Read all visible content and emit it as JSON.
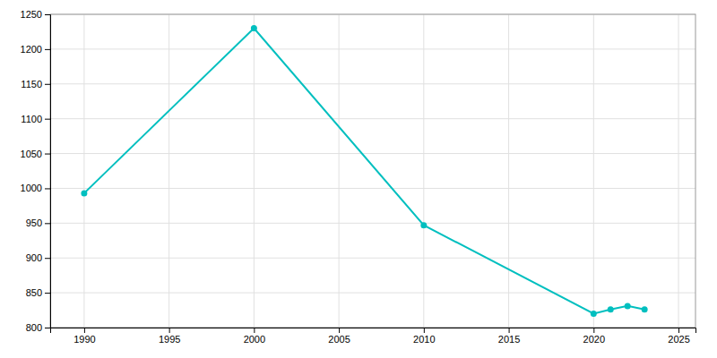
{
  "chart_data": {
    "type": "line",
    "x": [
      1990,
      2000,
      2010,
      2020,
      2021,
      2022,
      2023
    ],
    "values": [
      993,
      1230,
      947,
      820,
      826,
      831,
      826
    ],
    "color": "#00BFBF",
    "marker": "circle",
    "xlim": [
      1988,
      2026
    ],
    "xticks": [
      1990,
      1995,
      2000,
      2005,
      2010,
      2015,
      2020,
      2025
    ],
    "ylim": [
      800,
      1250
    ],
    "yticks": [
      800,
      850,
      900,
      950,
      1000,
      1050,
      1100,
      1150,
      1200,
      1250
    ],
    "grid": true
  }
}
